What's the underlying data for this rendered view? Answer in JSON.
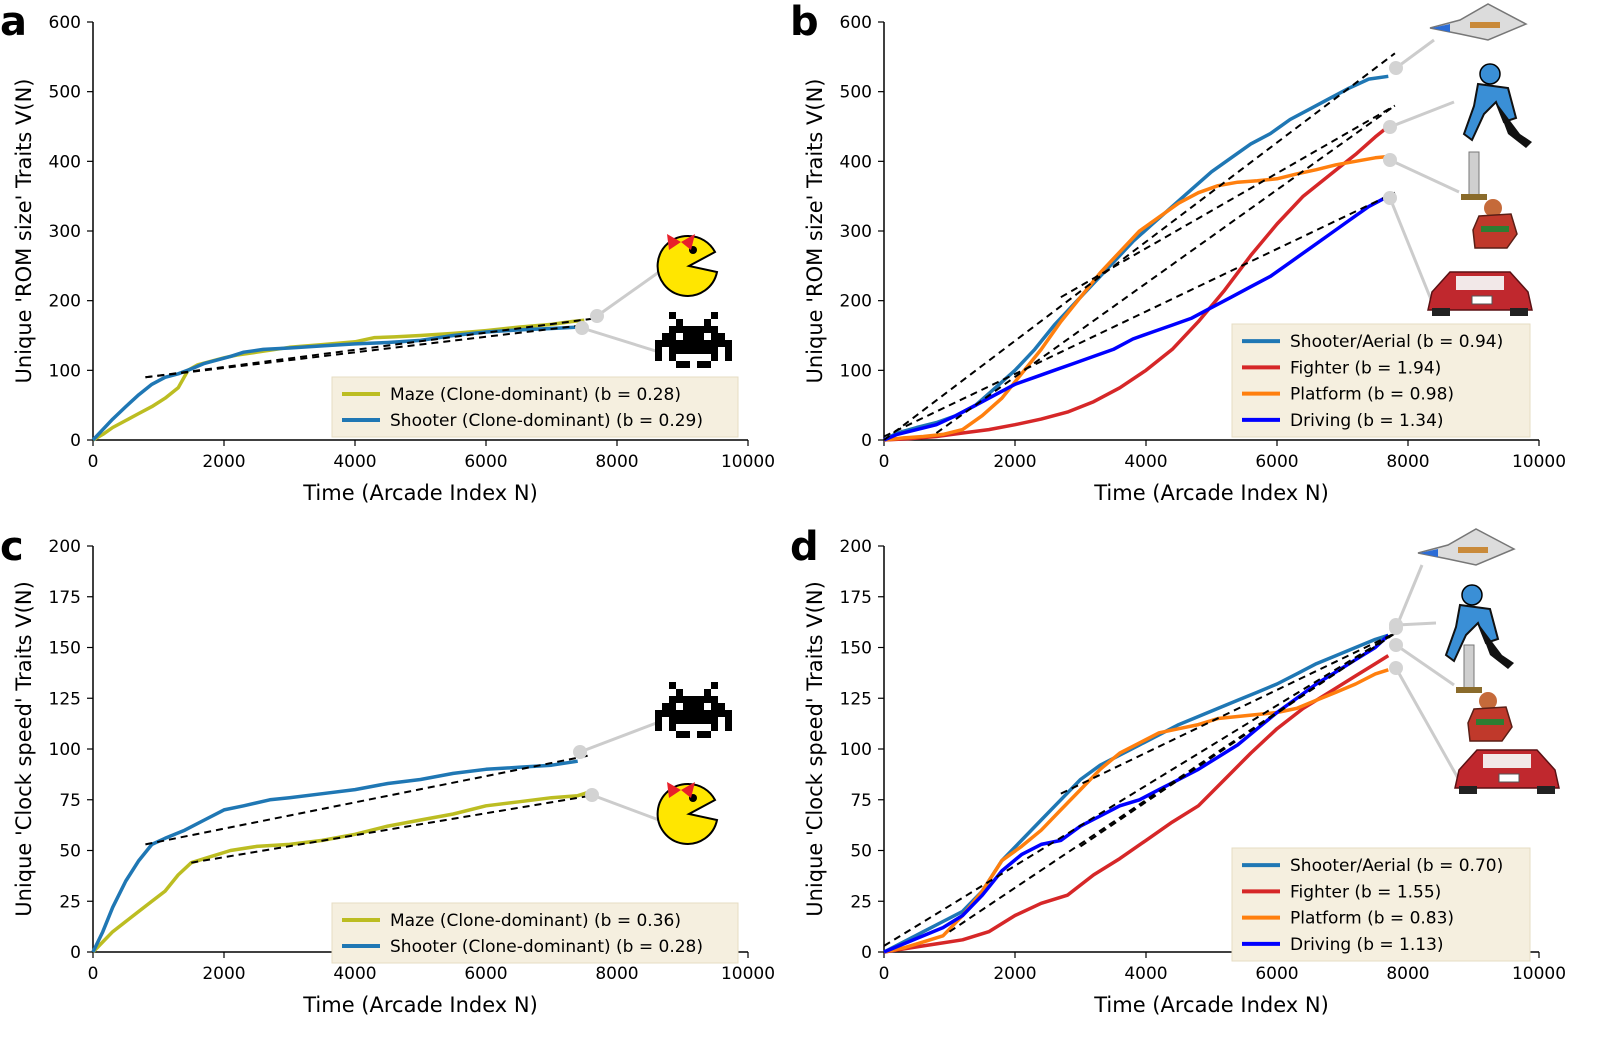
{
  "chart_data": [
    {
      "panel": "a",
      "type": "line",
      "xlabel": "Time (Arcade Index N)",
      "ylabel": "Unique 'ROM size' Traits V(N)",
      "xlim": [
        0,
        10000
      ],
      "ylim": [
        0,
        600
      ],
      "xticks": [
        0,
        2000,
        4000,
        6000,
        8000,
        10000
      ],
      "yticks": [
        0,
        100,
        200,
        300,
        400,
        500,
        600
      ],
      "legend_position": "lower-right",
      "series": [
        {
          "name": "Maze (Clone-dominant) (b = 0.28)",
          "color": "#bcbd22",
          "icon": "ms-pacman-icon",
          "x": [
            0,
            150,
            300,
            500,
            700,
            900,
            1100,
            1300,
            1450,
            1600,
            1800,
            2000,
            2200,
            2500,
            3000,
            3500,
            4000,
            4300,
            4600,
            5000,
            5500,
            6000,
            6500,
            7000,
            7300,
            7500
          ],
          "y": [
            0,
            8,
            18,
            28,
            38,
            48,
            60,
            75,
            100,
            108,
            113,
            118,
            122,
            126,
            133,
            137,
            141,
            147,
            148,
            150,
            153,
            157,
            162,
            166,
            170,
            172
          ],
          "fit": {
            "x": [
              800,
              7700
            ],
            "y": [
              90,
              175
            ]
          }
        },
        {
          "name": "Shooter (Clone-dominant) (b = 0.29)",
          "color": "#1f77b4",
          "icon": "space-invader-icon",
          "x": [
            0,
            150,
            300,
            500,
            700,
            900,
            1100,
            1300,
            1500,
            1700,
            1900,
            2100,
            2300,
            2600,
            3000,
            3500,
            4000,
            4500,
            5000,
            5500,
            6000,
            6500,
            7000,
            7400
          ],
          "y": [
            0,
            15,
            30,
            48,
            65,
            80,
            90,
            95,
            102,
            110,
            115,
            120,
            126,
            130,
            132,
            135,
            138,
            140,
            143,
            150,
            155,
            158,
            160,
            162
          ],
          "fit": {
            "x": [
              800,
              7500
            ],
            "y": [
              90,
              165
            ]
          }
        }
      ]
    },
    {
      "panel": "b",
      "type": "line",
      "xlabel": "Time (Arcade Index N)",
      "ylabel": "Unique 'ROM size' Traits V(N)",
      "xlim": [
        0,
        10000
      ],
      "ylim": [
        0,
        600
      ],
      "xticks": [
        0,
        2000,
        4000,
        6000,
        8000,
        10000
      ],
      "yticks": [
        0,
        100,
        200,
        300,
        400,
        500,
        600
      ],
      "legend_position": "lower-right",
      "series": [
        {
          "name": "Shooter/Aerial (b = 0.94)",
          "color": "#1f77b4",
          "icon": "spaceship-icon",
          "x": [
            0,
            200,
            500,
            800,
            1100,
            1400,
            1700,
            2000,
            2300,
            2600,
            2900,
            3200,
            3500,
            3800,
            4100,
            4400,
            4700,
            5000,
            5300,
            5600,
            5900,
            6200,
            6500,
            6800,
            7100,
            7400,
            7700
          ],
          "y": [
            0,
            10,
            18,
            25,
            35,
            50,
            75,
            100,
            130,
            165,
            195,
            225,
            255,
            285,
            310,
            335,
            360,
            385,
            405,
            425,
            440,
            460,
            475,
            490,
            505,
            518,
            522
          ],
          "fit": {
            "x": [
              0,
              7800
            ],
            "y": [
              0,
              555
            ]
          }
        },
        {
          "name": "Fighter (b = 1.94)",
          "color": "#d62728",
          "icon": "ninja-fighter-icon",
          "x": [
            0,
            400,
            800,
            1200,
            1600,
            2000,
            2400,
            2800,
            3200,
            3600,
            4000,
            4400,
            4800,
            5200,
            5600,
            6000,
            6400,
            6800,
            7200,
            7500,
            7700
          ],
          "y": [
            0,
            2,
            5,
            10,
            15,
            22,
            30,
            40,
            55,
            75,
            100,
            130,
            170,
            215,
            265,
            310,
            350,
            380,
            410,
            435,
            450
          ],
          "fit": {
            "x": [
              800,
              7800
            ],
            "y": [
              10,
              480
            ]
          }
        },
        {
          "name": "Platform (b = 0.98)",
          "color": "#ff7f0e",
          "icon": "barbarian-sword-icon",
          "x": [
            0,
            300,
            600,
            900,
            1200,
            1500,
            1800,
            2100,
            2400,
            2700,
            3000,
            3300,
            3600,
            3900,
            4200,
            4500,
            4800,
            5100,
            5400,
            5700,
            6000,
            6300,
            6600,
            6900,
            7200,
            7500,
            7700
          ],
          "y": [
            0,
            3,
            5,
            8,
            15,
            35,
            60,
            95,
            130,
            170,
            205,
            240,
            270,
            300,
            320,
            340,
            355,
            365,
            370,
            372,
            375,
            382,
            388,
            395,
            400,
            405,
            407
          ],
          "fit": {
            "x": [
              2700,
              7800
            ],
            "y": [
              205,
              480
            ]
          }
        },
        {
          "name": "Driving (b = 1.34)",
          "color": "#0000ff",
          "icon": "sports-car-icon",
          "x": [
            0,
            200,
            500,
            800,
            1100,
            1400,
            1700,
            2000,
            2300,
            2600,
            2900,
            3200,
            3500,
            3800,
            4100,
            4400,
            4700,
            5000,
            5300,
            5600,
            5900,
            6200,
            6500,
            6800,
            7100,
            7400,
            7700
          ],
          "y": [
            0,
            8,
            15,
            22,
            35,
            50,
            65,
            80,
            90,
            100,
            110,
            120,
            130,
            145,
            155,
            165,
            175,
            190,
            205,
            220,
            235,
            255,
            275,
            295,
            315,
            335,
            350
          ],
          "fit": {
            "x": [
              0,
              7800
            ],
            "y": [
              5,
              355
            ]
          }
        }
      ]
    },
    {
      "panel": "c",
      "type": "line",
      "xlabel": "Time (Arcade Index N)",
      "ylabel": "Unique 'Clock speed' Traits V(N)",
      "xlim": [
        0,
        10000
      ],
      "ylim": [
        0,
        200
      ],
      "xticks": [
        0,
        2000,
        4000,
        6000,
        8000,
        10000
      ],
      "yticks": [
        0,
        25,
        50,
        75,
        100,
        125,
        150,
        175,
        200
      ],
      "legend_position": "lower-right",
      "series": [
        {
          "name": "Maze (Clone-dominant) (b = 0.36)",
          "color": "#bcbd22",
          "icon": "ms-pacman-icon",
          "x": [
            0,
            150,
            300,
            500,
            700,
            900,
            1100,
            1300,
            1500,
            1800,
            2100,
            2500,
            3000,
            3500,
            4000,
            4500,
            5000,
            5500,
            6000,
            6500,
            7000,
            7400,
            7600
          ],
          "y": [
            0,
            5,
            10,
            15,
            20,
            25,
            30,
            38,
            44,
            47,
            50,
            52,
            53,
            55,
            58,
            62,
            65,
            68,
            72,
            74,
            76,
            77,
            79
          ],
          "fit": {
            "x": [
              1500,
              7600
            ],
            "y": [
              44,
              77
            ]
          }
        },
        {
          "name": "Shooter (Clone-dominant) (b = 0.28)",
          "color": "#1f77b4",
          "icon": "space-invader-icon",
          "x": [
            0,
            150,
            300,
            500,
            700,
            900,
            1100,
            1400,
            1700,
            2000,
            2300,
            2700,
            3000,
            3500,
            4000,
            4500,
            5000,
            5500,
            6000,
            6500,
            7000,
            7400
          ],
          "y": [
            0,
            10,
            22,
            35,
            45,
            53,
            56,
            60,
            65,
            70,
            72,
            75,
            76,
            78,
            80,
            83,
            85,
            88,
            90,
            91,
            92,
            94
          ],
          "fit": {
            "x": [
              800,
              7600
            ],
            "y": [
              53,
              97
            ]
          }
        }
      ]
    },
    {
      "panel": "d",
      "type": "line",
      "xlabel": "Time (Arcade Index N)",
      "ylabel": "Unique 'Clock speed' Traits V(N)",
      "xlim": [
        0,
        10000
      ],
      "ylim": [
        0,
        200
      ],
      "xticks": [
        0,
        2000,
        4000,
        6000,
        8000,
        10000
      ],
      "yticks": [
        0,
        25,
        50,
        75,
        100,
        125,
        150,
        175,
        200
      ],
      "legend_position": "lower-right",
      "series": [
        {
          "name": "Shooter/Aerial (b = 0.70)",
          "color": "#1f77b4",
          "icon": "spaceship-icon",
          "x": [
            0,
            300,
            600,
            900,
            1200,
            1500,
            1800,
            2100,
            2400,
            2700,
            3000,
            3300,
            3600,
            3900,
            4200,
            4500,
            4800,
            5100,
            5400,
            5700,
            6000,
            6300,
            6600,
            6900,
            7200,
            7500,
            7700
          ],
          "y": [
            0,
            5,
            10,
            15,
            20,
            30,
            45,
            55,
            65,
            75,
            85,
            92,
            97,
            102,
            107,
            112,
            116,
            120,
            124,
            128,
            132,
            137,
            142,
            146,
            150,
            154,
            156
          ],
          "fit": {
            "x": [
              0,
              7800
            ],
            "y": [
              3,
              157
            ]
          }
        },
        {
          "name": "Fighter (b = 1.55)",
          "color": "#d62728",
          "icon": "ninja-fighter-icon",
          "x": [
            0,
            400,
            800,
            1200,
            1600,
            2000,
            2400,
            2800,
            3200,
            3600,
            4000,
            4400,
            4800,
            5200,
            5600,
            6000,
            6400,
            6800,
            7200,
            7500,
            7700
          ],
          "y": [
            0,
            2,
            4,
            6,
            10,
            18,
            24,
            28,
            38,
            46,
            55,
            64,
            72,
            85,
            98,
            110,
            120,
            128,
            136,
            142,
            146
          ],
          "fit": {
            "x": [
              1000,
              7800
            ],
            "y": [
              10,
              157
            ]
          }
        },
        {
          "name": "Platform (b = 0.83)",
          "color": "#ff7f0e",
          "icon": "barbarian-sword-icon",
          "x": [
            0,
            300,
            600,
            900,
            1200,
            1500,
            1800,
            2100,
            2400,
            2700,
            3000,
            3300,
            3600,
            3900,
            4200,
            4500,
            4800,
            5100,
            5400,
            5700,
            6000,
            6300,
            6600,
            6900,
            7200,
            7500,
            7700
          ],
          "y": [
            0,
            2,
            5,
            8,
            18,
            30,
            45,
            52,
            60,
            70,
            80,
            90,
            98,
            103,
            108,
            110,
            112,
            115,
            116,
            117,
            118,
            120,
            124,
            128,
            132,
            137,
            139
          ],
          "fit": {
            "x": [
              2700,
              7800
            ],
            "y": [
              78,
              157
            ]
          }
        },
        {
          "name": "Driving (b = 1.13)",
          "color": "#0000ff",
          "icon": "sports-car-icon",
          "x": [
            0,
            300,
            600,
            900,
            1200,
            1500,
            1800,
            2100,
            2400,
            2700,
            3000,
            3300,
            3600,
            3900,
            4200,
            4500,
            4800,
            5100,
            5400,
            5700,
            6000,
            6300,
            6600,
            6900,
            7200,
            7500,
            7700
          ],
          "y": [
            0,
            4,
            8,
            12,
            18,
            28,
            40,
            48,
            53,
            55,
            62,
            67,
            72,
            75,
            80,
            85,
            90,
            96,
            102,
            110,
            118,
            125,
            132,
            138,
            144,
            150,
            156
          ],
          "fit": {
            "x": [
              3000,
              7800
            ],
            "y": [
              52,
              157
            ]
          }
        }
      ]
    }
  ]
}
